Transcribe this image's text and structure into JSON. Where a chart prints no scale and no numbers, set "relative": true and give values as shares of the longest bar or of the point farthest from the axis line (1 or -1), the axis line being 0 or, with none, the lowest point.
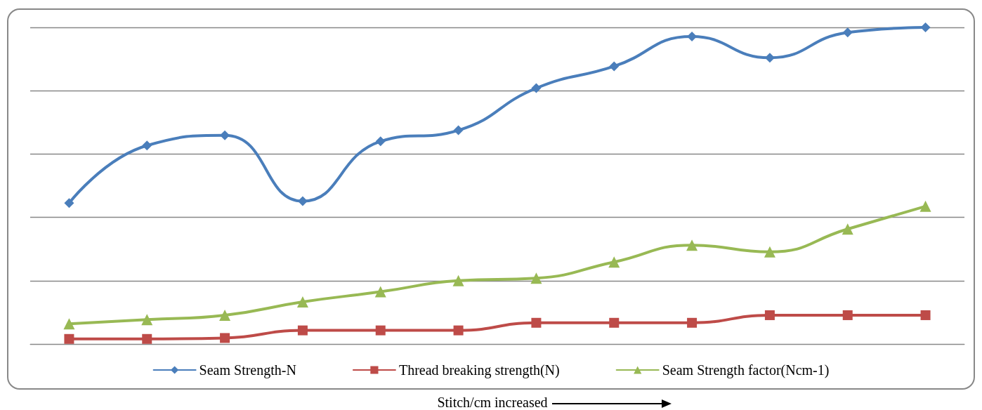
{
  "chart_data": {
    "type": "line",
    "relative": true,
    "xlabel": "Stitch/cm increased",
    "categories": [
      null,
      null,
      null,
      null,
      null,
      null,
      null,
      null,
      null,
      null,
      null,
      null
    ],
    "series": [
      {
        "name": "Seam Strength-N",
        "color": "#4a7ebb",
        "marker": "diamond",
        "values": [
          0.445,
          0.627,
          0.659,
          0.451,
          0.64,
          0.675,
          0.808,
          0.877,
          0.971,
          0.904,
          0.984,
          1
        ]
      },
      {
        "name": "Thread breaking strength(N)",
        "color": "#be4b48",
        "marker": "square",
        "values": [
          0.016,
          0.016,
          0.019,
          0.043,
          0.043,
          0.043,
          0.067,
          0.067,
          0.067,
          0.091,
          0.091,
          0.091
        ]
      },
      {
        "name": "Seam Strength factor(Ncm-1)",
        "color": "#98b954",
        "marker": "triangle",
        "values": [
          0.064,
          0.077,
          0.091,
          0.133,
          0.165,
          0.2,
          0.208,
          0.259,
          0.312,
          0.291,
          0.363,
          0.435
        ]
      }
    ],
    "grid": "y",
    "legend": "bottom",
    "line_style": "solid"
  }
}
